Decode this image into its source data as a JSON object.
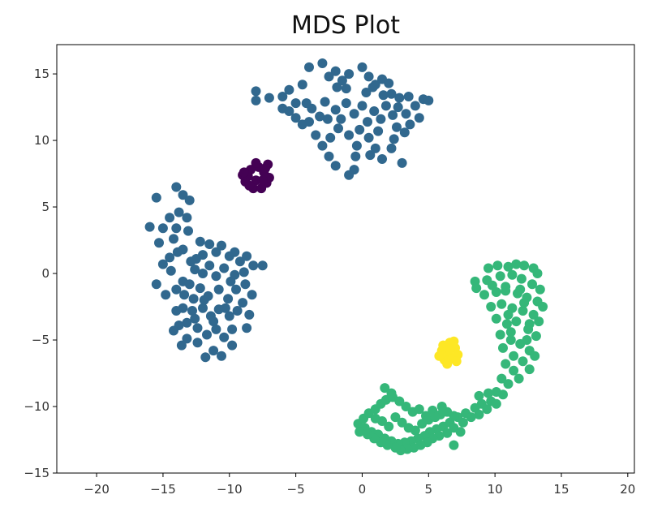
{
  "chart_data": {
    "type": "scatter",
    "title": "MDS Plot",
    "xlabel": "",
    "ylabel": "",
    "xlim": [
      -23,
      20.5
    ],
    "ylim": [
      -15,
      17.2
    ],
    "x_ticks": [
      -20,
      -15,
      -10,
      -5,
      0,
      5,
      10,
      15,
      20
    ],
    "y_ticks": [
      -15,
      -10,
      -5,
      0,
      5,
      10,
      15
    ],
    "x_tick_labels": [
      "−20",
      "−15",
      "−10",
      "−5",
      "0",
      "5",
      "10",
      "15",
      "20"
    ],
    "y_tick_labels": [
      "−15",
      "−10",
      "−5",
      "0",
      "5",
      "10",
      "15"
    ],
    "grid": false,
    "legend": "none",
    "colors": {
      "cluster_purple": "#440154",
      "cluster_blue": "#31688e",
      "cluster_green": "#35b779",
      "cluster_yellow": "#fde725"
    },
    "series": [
      {
        "color": "#31688e",
        "points": [
          [
            -8,
            13.7
          ],
          [
            -8,
            13
          ],
          [
            -7,
            13.2
          ],
          [
            -6,
            13.3
          ],
          [
            -5.5,
            13.8
          ],
          [
            -5,
            12.8
          ],
          [
            -4.5,
            14.2
          ],
          [
            -4,
            15.5
          ],
          [
            -3,
            15.8
          ],
          [
            -2.5,
            14.8
          ],
          [
            -2,
            15.2
          ],
          [
            -1.5,
            14.5
          ],
          [
            -1,
            15
          ],
          [
            0,
            15.5
          ],
          [
            0.5,
            14.8
          ],
          [
            1,
            14.2
          ],
          [
            1.5,
            14.6
          ],
          [
            2,
            14.3
          ],
          [
            2.2,
            13.5
          ],
          [
            2.8,
            13.2
          ],
          [
            3.5,
            13.3
          ],
          [
            4,
            12.6
          ],
          [
            4.6,
            13.1
          ],
          [
            5,
            13
          ],
          [
            4.3,
            11.7
          ],
          [
            3.6,
            11.2
          ],
          [
            3.2,
            10.6
          ],
          [
            2.4,
            10.1
          ],
          [
            2.2,
            9.4
          ],
          [
            1.5,
            8.6
          ],
          [
            0.6,
            8.9
          ],
          [
            -0.5,
            8.8
          ],
          [
            -1,
            7.4
          ],
          [
            -2,
            8.1
          ],
          [
            -2.5,
            8.8
          ],
          [
            -3,
            9.6
          ],
          [
            -3.5,
            10.4
          ],
          [
            -4,
            11.4
          ],
          [
            -4.5,
            11.2
          ],
          [
            -5,
            11.7
          ],
          [
            -5.5,
            12.2
          ],
          [
            -6,
            12.4
          ],
          [
            -3.8,
            12.4
          ],
          [
            -3.2,
            11.8
          ],
          [
            -2.8,
            12.9
          ],
          [
            -2,
            12.3
          ],
          [
            -1.6,
            11.6
          ],
          [
            -1.2,
            12.8
          ],
          [
            -0.6,
            12
          ],
          [
            0,
            12.6
          ],
          [
            0.4,
            11.4
          ],
          [
            0.9,
            12.2
          ],
          [
            1.4,
            11.6
          ],
          [
            1.8,
            12.6
          ],
          [
            2.3,
            11.9
          ],
          [
            2.7,
            12.5
          ],
          [
            -0.2,
            10.8
          ],
          [
            0.5,
            10.2
          ],
          [
            1.2,
            10.7
          ],
          [
            -1,
            10.4
          ],
          [
            -1.8,
            10.9
          ],
          [
            -2.4,
            10.2
          ],
          [
            1,
            9.4
          ],
          [
            -0.4,
            9.6
          ],
          [
            -2.6,
            11.6
          ],
          [
            -4.2,
            12.8
          ],
          [
            0.3,
            13.6
          ],
          [
            -1.2,
            13.9
          ],
          [
            1.6,
            13.4
          ],
          [
            2.6,
            11
          ],
          [
            3,
            8.3
          ],
          [
            -0.6,
            7.8
          ],
          [
            -1.9,
            14
          ],
          [
            0.8,
            14
          ],
          [
            3.3,
            12
          ],
          [
            -15.5,
            5.7
          ],
          [
            -14,
            6.5
          ],
          [
            -13.5,
            5.9
          ],
          [
            -13,
            5.5
          ],
          [
            -13.8,
            4.6
          ],
          [
            -14.5,
            4.2
          ],
          [
            -15,
            3.4
          ],
          [
            -16,
            3.5
          ],
          [
            -14,
            3.4
          ],
          [
            -13.2,
            4.2
          ],
          [
            -15.3,
            2.3
          ],
          [
            -14.2,
            2.6
          ],
          [
            -13.5,
            1.8
          ],
          [
            -14.5,
            1.2
          ],
          [
            -15,
            0.7
          ],
          [
            -14.4,
            0.2
          ],
          [
            -15.5,
            -0.8
          ],
          [
            -13.5,
            -0.6
          ],
          [
            -14,
            -1.2
          ],
          [
            -12.5,
            1.1
          ],
          [
            -12,
            1.4
          ],
          [
            -11.5,
            2.2
          ],
          [
            -11,
            1.6
          ],
          [
            -10.6,
            2.1
          ],
          [
            -10,
            1.3
          ],
          [
            -9.6,
            1.6
          ],
          [
            -9.2,
            0.9
          ],
          [
            -8.7,
            1.3
          ],
          [
            -8.2,
            0.6
          ],
          [
            -7.5,
            0.6
          ],
          [
            -9.6,
            -0.1
          ],
          [
            -10.4,
            0.4
          ],
          [
            -11,
            -0.2
          ],
          [
            -11.5,
            0.6
          ],
          [
            -12,
            0
          ],
          [
            -12.6,
            0.3
          ],
          [
            -13,
            -0.8
          ],
          [
            -13.4,
            -1.6
          ],
          [
            -12.2,
            -1.1
          ],
          [
            -11.6,
            -1.7
          ],
          [
            -10.8,
            -1.2
          ],
          [
            -10.1,
            -1.9
          ],
          [
            -9.5,
            -1.2
          ],
          [
            -8.8,
            -0.8
          ],
          [
            -8.3,
            -1.6
          ],
          [
            -9,
            -2.2
          ],
          [
            -9.4,
            -2.8
          ],
          [
            -10,
            -3.2
          ],
          [
            -10.8,
            -2.7
          ],
          [
            -11.4,
            -3.2
          ],
          [
            -12,
            -2.6
          ],
          [
            -12.8,
            -2.8
          ],
          [
            -13.5,
            -2.6
          ],
          [
            -14,
            -2.8
          ],
          [
            -13.8,
            -3.9
          ],
          [
            -13.2,
            -3.7
          ],
          [
            -12.4,
            -4.1
          ],
          [
            -11.7,
            -4.6
          ],
          [
            -11,
            -4.2
          ],
          [
            -10.4,
            -4.8
          ],
          [
            -9.8,
            -4.2
          ],
          [
            -8.7,
            -4.1
          ],
          [
            -8.5,
            -3.1
          ],
          [
            -9.8,
            -5.4
          ],
          [
            -11.2,
            -5.8
          ],
          [
            -11.8,
            -6.3
          ],
          [
            -12.4,
            -5.2
          ],
          [
            -13.2,
            -4.9
          ],
          [
            -13.6,
            -5.4
          ],
          [
            -14.2,
            -4.3
          ],
          [
            -10.6,
            -6.2
          ],
          [
            -12.6,
            -3.4
          ],
          [
            -11.2,
            -3.6
          ],
          [
            -9.9,
            -0.6
          ],
          [
            -12.9,
            0.9
          ],
          [
            -13.9,
            1.6
          ],
          [
            -12.2,
            2.4
          ],
          [
            -8.9,
            0.1
          ],
          [
            -14.8,
            -1.6
          ],
          [
            -13.1,
            3.2
          ],
          [
            -11.9,
            -2
          ],
          [
            -10.3,
            -2.6
          ],
          [
            -12.7,
            -1.9
          ]
        ]
      },
      {
        "color": "#440154",
        "points": [
          [
            -8,
            7
          ],
          [
            -8.6,
            7.3
          ],
          [
            -7.4,
            7.6
          ],
          [
            -8.2,
            6.4
          ],
          [
            -7.2,
            6.8
          ],
          [
            -8.8,
            6.9
          ],
          [
            -7.8,
            8
          ],
          [
            -7,
            7.2
          ],
          [
            -8.4,
            7.8
          ],
          [
            -7.6,
            6.4
          ],
          [
            -9,
            7.4
          ],
          [
            -7.1,
            8.2
          ],
          [
            -8.5,
            6.6
          ],
          [
            -8,
            8.3
          ],
          [
            -7.3,
            7.9
          ],
          [
            -8.9,
            7.6
          ],
          [
            -7.5,
            7
          ]
        ]
      },
      {
        "color": "#35b779",
        "points": [
          [
            9.5,
            0.4
          ],
          [
            10.2,
            0.6
          ],
          [
            11,
            0.5
          ],
          [
            11.6,
            0.7
          ],
          [
            12.2,
            0.6
          ],
          [
            12.9,
            0.4
          ],
          [
            13.2,
            0
          ],
          [
            8.5,
            -0.6
          ],
          [
            8.6,
            -1.1
          ],
          [
            9.4,
            -0.5
          ],
          [
            10.4,
            -0.2
          ],
          [
            11.3,
            -0.1
          ],
          [
            12,
            -0.4
          ],
          [
            12.8,
            -0.8
          ],
          [
            13.4,
            -1.2
          ],
          [
            9.2,
            -1.6
          ],
          [
            10.1,
            -1.4
          ],
          [
            10.8,
            -1.3
          ],
          [
            11.7,
            -1.5
          ],
          [
            12.4,
            -1.8
          ],
          [
            13.2,
            -2.1
          ],
          [
            13.6,
            -2.5
          ],
          [
            9.7,
            -2.5
          ],
          [
            10.5,
            -2.3
          ],
          [
            11.3,
            -2.6
          ],
          [
            12.1,
            -2.8
          ],
          [
            12.9,
            -3.1
          ],
          [
            13.3,
            -3.6
          ],
          [
            10.1,
            -3.4
          ],
          [
            10.9,
            -3.8
          ],
          [
            11.6,
            -3.6
          ],
          [
            12.5,
            -4.2
          ],
          [
            13.1,
            -4.7
          ],
          [
            10.4,
            -4.6
          ],
          [
            11.2,
            -5
          ],
          [
            11.9,
            -5.3
          ],
          [
            12.6,
            -5.8
          ],
          [
            13,
            -6.2
          ],
          [
            10.6,
            -5.6
          ],
          [
            11.4,
            -6.2
          ],
          [
            12.1,
            -6.6
          ],
          [
            12.6,
            -7.2
          ],
          [
            10.8,
            -6.8
          ],
          [
            11.4,
            -7.3
          ],
          [
            11.8,
            -7.9
          ],
          [
            10.5,
            -7.9
          ],
          [
            11,
            -8.3
          ],
          [
            10.1,
            -8.9
          ],
          [
            10.6,
            -9.1
          ],
          [
            9.7,
            -9.6
          ],
          [
            10.1,
            -9.8
          ],
          [
            9,
            -9.8
          ],
          [
            9.4,
            -10.2
          ],
          [
            8.5,
            -10.1
          ],
          [
            8.8,
            -10.6
          ],
          [
            7.8,
            -10.5
          ],
          [
            8.2,
            -10.8
          ],
          [
            7.2,
            -10.8
          ],
          [
            7.6,
            -11.2
          ],
          [
            6.6,
            -11.2
          ],
          [
            6.9,
            -11.6
          ],
          [
            6.1,
            -11.5
          ],
          [
            6.4,
            -12
          ],
          [
            5.6,
            -11.7
          ],
          [
            5.8,
            -12.2
          ],
          [
            5.1,
            -11.9
          ],
          [
            5.3,
            -12.4
          ],
          [
            4.7,
            -12.2
          ],
          [
            4.9,
            -12.7
          ],
          [
            4.2,
            -12.4
          ],
          [
            4.4,
            -12.9
          ],
          [
            3.7,
            -12.6
          ],
          [
            3.9,
            -13.1
          ],
          [
            3.2,
            -12.7
          ],
          [
            3.4,
            -13.2
          ],
          [
            2.7,
            -12.8
          ],
          [
            2.9,
            -13.3
          ],
          [
            2.2,
            -12.6
          ],
          [
            2.5,
            -13.1
          ],
          [
            1.7,
            -12.4
          ],
          [
            1.9,
            -12.9
          ],
          [
            1.2,
            -12.1
          ],
          [
            1.4,
            -12.7
          ],
          [
            0.7,
            -11.9
          ],
          [
            0.9,
            -12.4
          ],
          [
            0.2,
            -11.6
          ],
          [
            0.4,
            -12.1
          ],
          [
            -0.3,
            -11.3
          ],
          [
            -0.2,
            -11.9
          ],
          [
            0.1,
            -10.9
          ],
          [
            0.5,
            -10.5
          ],
          [
            1,
            -10.2
          ],
          [
            1.4,
            -9.8
          ],
          [
            1.8,
            -9.5
          ],
          [
            2.3,
            -9.3
          ],
          [
            2.8,
            -9.6
          ],
          [
            3.3,
            -10
          ],
          [
            3.8,
            -10.4
          ],
          [
            4.3,
            -10.2
          ],
          [
            4.8,
            -10.7
          ],
          [
            5.3,
            -10.3
          ],
          [
            5.9,
            -10.6
          ],
          [
            6.4,
            -10.4
          ],
          [
            6.9,
            -10.7
          ],
          [
            2.5,
            -10.8
          ],
          [
            3,
            -11.2
          ],
          [
            3.5,
            -11.6
          ],
          [
            4,
            -11.8
          ],
          [
            1.5,
            -11.1
          ],
          [
            2,
            -11.5
          ],
          [
            1,
            -10.9
          ],
          [
            4.5,
            -11.3
          ],
          [
            5,
            -11
          ],
          [
            5.5,
            -10.8
          ],
          [
            6,
            -10
          ],
          [
            1.7,
            -8.6
          ],
          [
            2.2,
            -9
          ],
          [
            6.9,
            -12.9
          ],
          [
            7.4,
            -11.9
          ],
          [
            8.8,
            -9.2
          ],
          [
            9.5,
            -9
          ],
          [
            12.2,
            -2.2
          ],
          [
            10.8,
            -1
          ],
          [
            12.6,
            -3.8
          ],
          [
            9.8,
            -0.9
          ],
          [
            11.9,
            -1.2
          ],
          [
            11,
            -3.1
          ],
          [
            12.4,
            -5
          ],
          [
            11.2,
            -4.4
          ]
        ]
      },
      {
        "color": "#fde725",
        "points": [
          [
            6.5,
            -6
          ],
          [
            6,
            -5.8
          ],
          [
            7,
            -5.6
          ],
          [
            6.2,
            -6.5
          ],
          [
            6.8,
            -6.4
          ],
          [
            6.6,
            -5.2
          ],
          [
            5.8,
            -6.2
          ],
          [
            7.2,
            -6.1
          ],
          [
            6.4,
            -6.8
          ],
          [
            6.9,
            -5.1
          ],
          [
            6.1,
            -5.4
          ],
          [
            7.1,
            -6.6
          ],
          [
            6.6,
            -5.7
          ]
        ]
      }
    ]
  }
}
